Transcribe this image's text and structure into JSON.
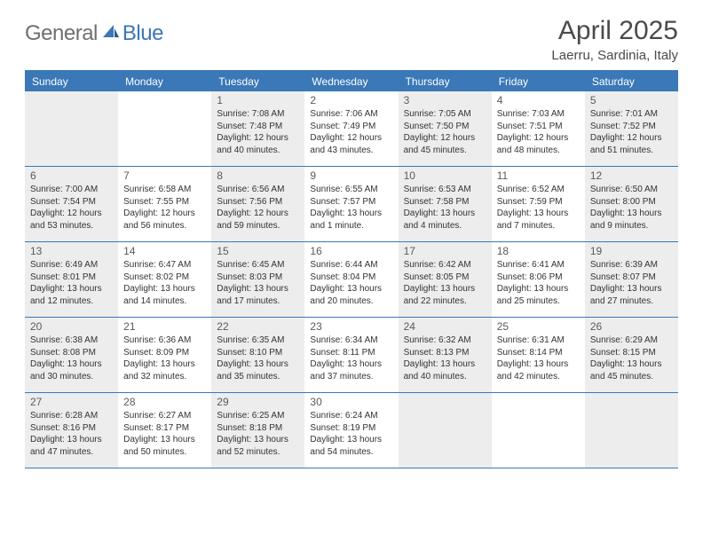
{
  "logo": {
    "general": "General",
    "blue": "Blue"
  },
  "title": "April 2025",
  "subtitle": "Laerru, Sardinia, Italy",
  "colors": {
    "accent": "#3a78b7",
    "logo_gray": "#6f6f6f",
    "text_gray": "#4a4a4a",
    "body_text": "#333333",
    "shaded_bg": "#ededed",
    "background": "#ffffff"
  },
  "typography": {
    "title_fontsize": 30,
    "subtitle_fontsize": 15,
    "dayheader_fontsize": 12,
    "daynum_fontsize": 12,
    "body_fontsize": 10,
    "font_family": "Arial"
  },
  "day_headers": [
    "Sunday",
    "Monday",
    "Tuesday",
    "Wednesday",
    "Thursday",
    "Friday",
    "Saturday"
  ],
  "weeks": [
    [
      {
        "blank": true,
        "shaded": true
      },
      {
        "blank": true,
        "shaded": false
      },
      {
        "day": "1",
        "shaded": true,
        "sunrise": "Sunrise: 7:08 AM",
        "sunset": "Sunset: 7:48 PM",
        "daylight1": "Daylight: 12 hours",
        "daylight2": "and 40 minutes."
      },
      {
        "day": "2",
        "shaded": false,
        "sunrise": "Sunrise: 7:06 AM",
        "sunset": "Sunset: 7:49 PM",
        "daylight1": "Daylight: 12 hours",
        "daylight2": "and 43 minutes."
      },
      {
        "day": "3",
        "shaded": true,
        "sunrise": "Sunrise: 7:05 AM",
        "sunset": "Sunset: 7:50 PM",
        "daylight1": "Daylight: 12 hours",
        "daylight2": "and 45 minutes."
      },
      {
        "day": "4",
        "shaded": false,
        "sunrise": "Sunrise: 7:03 AM",
        "sunset": "Sunset: 7:51 PM",
        "daylight1": "Daylight: 12 hours",
        "daylight2": "and 48 minutes."
      },
      {
        "day": "5",
        "shaded": true,
        "sunrise": "Sunrise: 7:01 AM",
        "sunset": "Sunset: 7:52 PM",
        "daylight1": "Daylight: 12 hours",
        "daylight2": "and 51 minutes."
      }
    ],
    [
      {
        "day": "6",
        "shaded": true,
        "sunrise": "Sunrise: 7:00 AM",
        "sunset": "Sunset: 7:54 PM",
        "daylight1": "Daylight: 12 hours",
        "daylight2": "and 53 minutes."
      },
      {
        "day": "7",
        "shaded": false,
        "sunrise": "Sunrise: 6:58 AM",
        "sunset": "Sunset: 7:55 PM",
        "daylight1": "Daylight: 12 hours",
        "daylight2": "and 56 minutes."
      },
      {
        "day": "8",
        "shaded": true,
        "sunrise": "Sunrise: 6:56 AM",
        "sunset": "Sunset: 7:56 PM",
        "daylight1": "Daylight: 12 hours",
        "daylight2": "and 59 minutes."
      },
      {
        "day": "9",
        "shaded": false,
        "sunrise": "Sunrise: 6:55 AM",
        "sunset": "Sunset: 7:57 PM",
        "daylight1": "Daylight: 13 hours",
        "daylight2": "and 1 minute."
      },
      {
        "day": "10",
        "shaded": true,
        "sunrise": "Sunrise: 6:53 AM",
        "sunset": "Sunset: 7:58 PM",
        "daylight1": "Daylight: 13 hours",
        "daylight2": "and 4 minutes."
      },
      {
        "day": "11",
        "shaded": false,
        "sunrise": "Sunrise: 6:52 AM",
        "sunset": "Sunset: 7:59 PM",
        "daylight1": "Daylight: 13 hours",
        "daylight2": "and 7 minutes."
      },
      {
        "day": "12",
        "shaded": true,
        "sunrise": "Sunrise: 6:50 AM",
        "sunset": "Sunset: 8:00 PM",
        "daylight1": "Daylight: 13 hours",
        "daylight2": "and 9 minutes."
      }
    ],
    [
      {
        "day": "13",
        "shaded": true,
        "sunrise": "Sunrise: 6:49 AM",
        "sunset": "Sunset: 8:01 PM",
        "daylight1": "Daylight: 13 hours",
        "daylight2": "and 12 minutes."
      },
      {
        "day": "14",
        "shaded": false,
        "sunrise": "Sunrise: 6:47 AM",
        "sunset": "Sunset: 8:02 PM",
        "daylight1": "Daylight: 13 hours",
        "daylight2": "and 14 minutes."
      },
      {
        "day": "15",
        "shaded": true,
        "sunrise": "Sunrise: 6:45 AM",
        "sunset": "Sunset: 8:03 PM",
        "daylight1": "Daylight: 13 hours",
        "daylight2": "and 17 minutes."
      },
      {
        "day": "16",
        "shaded": false,
        "sunrise": "Sunrise: 6:44 AM",
        "sunset": "Sunset: 8:04 PM",
        "daylight1": "Daylight: 13 hours",
        "daylight2": "and 20 minutes."
      },
      {
        "day": "17",
        "shaded": true,
        "sunrise": "Sunrise: 6:42 AM",
        "sunset": "Sunset: 8:05 PM",
        "daylight1": "Daylight: 13 hours",
        "daylight2": "and 22 minutes."
      },
      {
        "day": "18",
        "shaded": false,
        "sunrise": "Sunrise: 6:41 AM",
        "sunset": "Sunset: 8:06 PM",
        "daylight1": "Daylight: 13 hours",
        "daylight2": "and 25 minutes."
      },
      {
        "day": "19",
        "shaded": true,
        "sunrise": "Sunrise: 6:39 AM",
        "sunset": "Sunset: 8:07 PM",
        "daylight1": "Daylight: 13 hours",
        "daylight2": "and 27 minutes."
      }
    ],
    [
      {
        "day": "20",
        "shaded": true,
        "sunrise": "Sunrise: 6:38 AM",
        "sunset": "Sunset: 8:08 PM",
        "daylight1": "Daylight: 13 hours",
        "daylight2": "and 30 minutes."
      },
      {
        "day": "21",
        "shaded": false,
        "sunrise": "Sunrise: 6:36 AM",
        "sunset": "Sunset: 8:09 PM",
        "daylight1": "Daylight: 13 hours",
        "daylight2": "and 32 minutes."
      },
      {
        "day": "22",
        "shaded": true,
        "sunrise": "Sunrise: 6:35 AM",
        "sunset": "Sunset: 8:10 PM",
        "daylight1": "Daylight: 13 hours",
        "daylight2": "and 35 minutes."
      },
      {
        "day": "23",
        "shaded": false,
        "sunrise": "Sunrise: 6:34 AM",
        "sunset": "Sunset: 8:11 PM",
        "daylight1": "Daylight: 13 hours",
        "daylight2": "and 37 minutes."
      },
      {
        "day": "24",
        "shaded": true,
        "sunrise": "Sunrise: 6:32 AM",
        "sunset": "Sunset: 8:13 PM",
        "daylight1": "Daylight: 13 hours",
        "daylight2": "and 40 minutes."
      },
      {
        "day": "25",
        "shaded": false,
        "sunrise": "Sunrise: 6:31 AM",
        "sunset": "Sunset: 8:14 PM",
        "daylight1": "Daylight: 13 hours",
        "daylight2": "and 42 minutes."
      },
      {
        "day": "26",
        "shaded": true,
        "sunrise": "Sunrise: 6:29 AM",
        "sunset": "Sunset: 8:15 PM",
        "daylight1": "Daylight: 13 hours",
        "daylight2": "and 45 minutes."
      }
    ],
    [
      {
        "day": "27",
        "shaded": true,
        "sunrise": "Sunrise: 6:28 AM",
        "sunset": "Sunset: 8:16 PM",
        "daylight1": "Daylight: 13 hours",
        "daylight2": "and 47 minutes."
      },
      {
        "day": "28",
        "shaded": false,
        "sunrise": "Sunrise: 6:27 AM",
        "sunset": "Sunset: 8:17 PM",
        "daylight1": "Daylight: 13 hours",
        "daylight2": "and 50 minutes."
      },
      {
        "day": "29",
        "shaded": true,
        "sunrise": "Sunrise: 6:25 AM",
        "sunset": "Sunset: 8:18 PM",
        "daylight1": "Daylight: 13 hours",
        "daylight2": "and 52 minutes."
      },
      {
        "day": "30",
        "shaded": false,
        "sunrise": "Sunrise: 6:24 AM",
        "sunset": "Sunset: 8:19 PM",
        "daylight1": "Daylight: 13 hours",
        "daylight2": "and 54 minutes."
      },
      {
        "blank": true,
        "shaded": true
      },
      {
        "blank": true,
        "shaded": false
      },
      {
        "blank": true,
        "shaded": true
      }
    ]
  ]
}
